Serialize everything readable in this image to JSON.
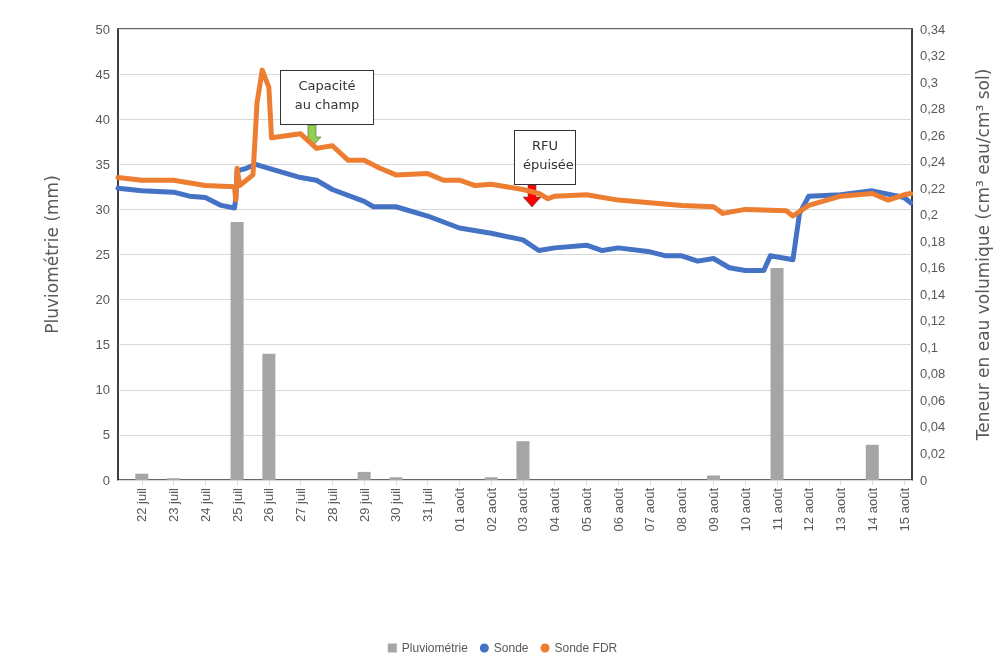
{
  "chart_data": {
    "type": "bar",
    "ylabel": "Pluviométrie (mm)",
    "y2label": "Teneur en eau volumique (cm³ eau/cm³ sol)",
    "xlim": [
      "--07-21T06:00",
      "--08-15T06:00"
    ],
    "xticks": [
      {
        "value": "--07-22",
        "label": "22 juil"
      },
      {
        "value": "--07-23",
        "label": "23 juil"
      },
      {
        "value": "--07-24",
        "label": "24 juil"
      },
      {
        "value": "--07-25",
        "label": "25 juil"
      },
      {
        "value": "--07-26",
        "label": "26 juil"
      },
      {
        "value": "--07-27",
        "label": "27 juil"
      },
      {
        "value": "--07-28",
        "label": "28 juil"
      },
      {
        "value": "--07-29",
        "label": "29 juil"
      },
      {
        "value": "--07-30",
        "label": "30 juil"
      },
      {
        "value": "--07-31",
        "label": "31 juil"
      },
      {
        "value": "--08-01",
        "label": "01 août"
      },
      {
        "value": "--08-02",
        "label": "02 août"
      },
      {
        "value": "--08-03",
        "label": "03 août"
      },
      {
        "value": "--08-04",
        "label": "04 août"
      },
      {
        "value": "--08-05",
        "label": "05 août"
      },
      {
        "value": "--08-06",
        "label": "06 août"
      },
      {
        "value": "--08-07",
        "label": "07 août"
      },
      {
        "value": "--08-08",
        "label": "08 août"
      },
      {
        "value": "--08-09",
        "label": "09 août"
      },
      {
        "value": "--08-10",
        "label": "10 août"
      },
      {
        "value": "--08-11",
        "label": "11 août"
      },
      {
        "value": "--08-12",
        "label": "12 août"
      },
      {
        "value": "--08-13",
        "label": "13 août"
      },
      {
        "value": "--08-14",
        "label": "14 août"
      },
      {
        "value": "--08-15",
        "label": "15 août"
      }
    ],
    "ylim": [
      0,
      50
    ],
    "yticks": [
      0,
      5,
      10,
      15,
      20,
      25,
      30,
      35,
      40,
      45,
      50
    ],
    "y2lim": [
      0,
      0.34
    ],
    "y2ticks": [
      0,
      {
        "value": 0.02,
        "label": "0,02"
      },
      {
        "value": 0.04,
        "label": "0,04"
      },
      {
        "value": 0.06,
        "label": "0,06"
      },
      {
        "value": 0.08,
        "label": "0,08"
      },
      {
        "value": 0.1,
        "label": "0,1"
      },
      {
        "value": 0.12,
        "label": "0,12"
      },
      {
        "value": 0.14,
        "label": "0,14"
      },
      {
        "value": 0.16,
        "label": "0,16"
      },
      {
        "value": 0.18,
        "label": "0,18"
      },
      {
        "value": 0.2,
        "label": "0,2"
      },
      {
        "value": 0.22,
        "label": "0,22"
      },
      {
        "value": 0.24,
        "label": "0,24"
      },
      {
        "value": 0.26,
        "label": "0,26"
      },
      {
        "value": 0.28,
        "label": "0,28"
      },
      {
        "value": 0.3,
        "label": "0,3"
      },
      {
        "value": 0.32,
        "label": "0,32"
      },
      {
        "value": 0.34,
        "label": "0,34"
      }
    ],
    "grid": "y",
    "legend": "bottom",
    "series": [
      {
        "name": "Pluviométrie",
        "color": "#a5a5a5",
        "x": [
          "--07-22",
          "--07-23",
          "--07-24",
          "--07-25",
          "--07-26",
          "--07-27",
          "--07-28",
          "--07-29",
          "--07-30",
          "--07-31",
          "--08-01",
          "--08-02",
          "--08-03",
          "--08-04",
          "--08-05",
          "--08-06",
          "--08-07",
          "--08-08",
          "--08-09",
          "--08-10",
          "--08-11",
          "--08-12",
          "--08-13",
          "--08-14",
          "--08-15"
        ],
        "values": [
          0.7,
          0.2,
          0,
          28.6,
          14,
          0,
          0,
          0.9,
          0.3,
          0,
          0,
          0.3,
          4.3,
          0,
          0,
          0,
          0,
          0,
          0.5,
          0,
          23.5,
          0,
          0,
          3.9,
          0
        ]
      },
      {
        "name": "Sonde",
        "type": "line",
        "axis": "y2",
        "color": "#4472c4",
        "line_style": "solid",
        "x": [
          "--07-21T06:00",
          "--07-22T00:00",
          "--07-23T00:00",
          "--07-23T12:00",
          "--07-24T00:00",
          "--07-24T12:00",
          "--07-24T22:00",
          "--07-24T23:00",
          "--07-25T00:00",
          "--07-25T07:00",
          "--07-25T14:00",
          "--07-26T00:00",
          "--07-27T00:00",
          "--07-27T12:00",
          "--07-28T00:00",
          "--07-29T00:00",
          "--07-29T07:00",
          "--07-30T00:00",
          "--07-31T00:00",
          "--08-01T00:00",
          "--08-02T00:00",
          "--08-03T00:00",
          "--08-03T12:00",
          "--08-04T00:00",
          "--08-05T00:00",
          "--08-05T12:00",
          "--08-06T00:00",
          "--08-07T00:00",
          "--08-07T12:00",
          "--08-08T00:00",
          "--08-08T12:00",
          "--08-09T00:00",
          "--08-09T12:00",
          "--08-10T00:00",
          "--08-10T14:00",
          "--08-10T19:00",
          "--08-11T07:00",
          "--08-11T12:00",
          "--08-11T14:00",
          "--08-11T17:00",
          "--08-12T00:00",
          "--08-13T00:00",
          "--08-14T00:00",
          "--08-15T00:00",
          "--08-15T05:00"
        ],
        "values": [
          0.22,
          0.218,
          0.217,
          0.214,
          0.213,
          0.207,
          0.205,
          0.212,
          0.233,
          0.235,
          0.238,
          0.235,
          0.228,
          0.226,
          0.219,
          0.21,
          0.206,
          0.206,
          0.199,
          0.19,
          0.186,
          0.181,
          0.173,
          0.175,
          0.177,
          0.173,
          0.175,
          0.172,
          0.169,
          0.169,
          0.165,
          0.167,
          0.16,
          0.158,
          0.158,
          0.169,
          0.167,
          0.166,
          0.18,
          0.201,
          0.214,
          0.215,
          0.218,
          0.213,
          0.209
        ]
      },
      {
        "name": "Sonde FDR",
        "type": "line",
        "axis": "y2",
        "color": "#ed7d31",
        "line_style": "solid",
        "x": [
          "--07-21T06:00",
          "--07-22T00:00",
          "--07-23T00:00",
          "--07-24T00:00",
          "--07-24T22:00",
          "--07-24T23:00",
          "--07-25T00:00",
          "--07-25T02:00",
          "--07-25T12:00",
          "--07-25T14:00",
          "--07-25T15:00",
          "--07-25T19:00",
          "--07-26T00:00",
          "--07-26T02:00",
          "--07-27T00:00",
          "--07-27T12:00",
          "--07-28T00:00",
          "--07-28T12:00",
          "--07-29T00:00",
          "--07-29T12:00",
          "--07-30T00:00",
          "--07-31T00:00",
          "--07-31T12:00",
          "--08-01T00:00",
          "--08-01T12:00",
          "--08-02T00:00",
          "--08-03T00:00",
          "--08-03T12:00",
          "--08-03T19:00",
          "--08-04T00:00",
          "--08-05T00:00",
          "--08-06T00:00",
          "--08-07T00:00",
          "--08-08T00:00",
          "--08-09T00:00",
          "--08-09T07:00",
          "--08-10T00:00",
          "--08-11T07:00",
          "--08-11T12:00",
          "--08-12T00:00",
          "--08-13T00:00",
          "--08-14T00:00",
          "--08-14T12:00",
          "--08-15T00:00",
          "--08-15T05:00"
        ],
        "values": [
          0.228,
          0.226,
          0.226,
          0.222,
          0.221,
          0.211,
          0.235,
          0.222,
          0.23,
          0.265,
          0.284,
          0.309,
          0.296,
          0.258,
          0.261,
          0.25,
          0.252,
          0.241,
          0.241,
          0.235,
          0.23,
          0.231,
          0.226,
          0.226,
          0.222,
          0.223,
          0.219,
          0.216,
          0.212,
          0.214,
          0.215,
          0.211,
          0.209,
          0.207,
          0.206,
          0.201,
          0.204,
          0.203,
          0.199,
          0.207,
          0.214,
          0.216,
          0.211,
          0.215,
          0.216
        ]
      }
    ],
    "annotations": [
      "Capacité au champ",
      "RFU épuisée"
    ]
  }
}
